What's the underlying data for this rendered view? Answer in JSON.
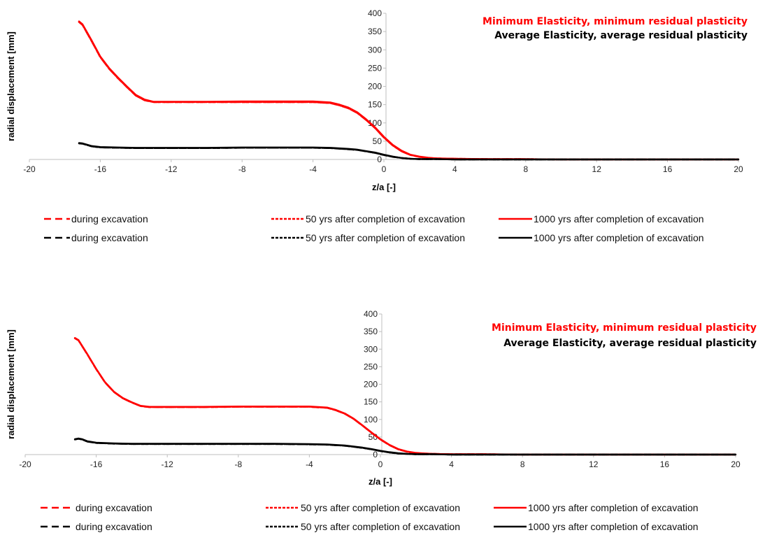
{
  "chart_data": [
    {
      "type": "line",
      "xlabel": "z/a [-]",
      "ylabel": "radial displacement [mm]",
      "xlim": [
        -20,
        20
      ],
      "ylim": [
        0,
        400
      ],
      "xticks": [
        -20,
        -16,
        -12,
        -8,
        -4,
        0,
        4,
        8,
        12,
        16,
        20
      ],
      "yticks": [
        0,
        50,
        100,
        150,
        200,
        250,
        300,
        350,
        400
      ],
      "grid": false,
      "annotations": [
        {
          "text": "Minimum Elasticity, minimum residual plasticity",
          "color": "#ff0000"
        },
        {
          "text": "Average Elasticity, average residual plasticity",
          "color": "#000000"
        }
      ],
      "legend_position": "bottom",
      "series": [
        {
          "name": "during excavation",
          "color": "#ff0000",
          "dash": "dashed",
          "x": [
            -17.2,
            -17,
            -16.5,
            -16,
            -15.5,
            -15,
            -14.5,
            -14,
            -13.5,
            -13,
            -12,
            -10,
            -8,
            -6,
            -4,
            -3,
            -2.5,
            -2,
            -1.5,
            -1,
            -0.5,
            0,
            0.5,
            1,
            1.5,
            2,
            2.5,
            3,
            4,
            6,
            8,
            10,
            12,
            14,
            16,
            18,
            20
          ],
          "y": [
            376,
            368,
            325,
            280,
            248,
            222,
            198,
            175,
            162,
            157,
            157,
            157,
            157,
            157,
            157,
            154,
            148,
            140,
            127,
            108,
            86,
            60,
            38,
            22,
            12,
            7,
            4,
            3,
            2,
            1,
            1,
            0,
            0,
            0,
            0,
            0,
            0
          ]
        },
        {
          "name": "50 yrs after completion of excavation",
          "color": "#ff0000",
          "dash": "short-dashed",
          "x": [
            -17.2,
            -17,
            -16.5,
            -16,
            -15.5,
            -15,
            -14.5,
            -14,
            -13.5,
            -13,
            -12,
            -10,
            -8,
            -6,
            -4,
            -3,
            -2.5,
            -2,
            -1.5,
            -1,
            -0.5,
            0,
            0.5,
            1,
            1.5,
            2,
            2.5,
            3,
            4,
            6,
            8,
            10,
            12,
            14,
            16,
            18,
            20
          ],
          "y": [
            376,
            368,
            325,
            280,
            248,
            222,
            198,
            175,
            162,
            157,
            157,
            157,
            157,
            157,
            157,
            154,
            148,
            140,
            127,
            108,
            86,
            60,
            38,
            22,
            12,
            7,
            4,
            3,
            2,
            1,
            1,
            0,
            0,
            0,
            0,
            0,
            0
          ]
        },
        {
          "name": "1000 yrs after completion of excavation",
          "color": "#ff0000",
          "dash": "solid",
          "x": [
            -17.2,
            -17,
            -16.5,
            -16,
            -15.5,
            -15,
            -14.5,
            -14,
            -13.5,
            -13,
            -12,
            -10,
            -8,
            -6,
            -4,
            -3,
            -2.5,
            -2,
            -1.5,
            -1,
            -0.5,
            0,
            0.5,
            1,
            1.5,
            2,
            2.5,
            3,
            4,
            6,
            8,
            10,
            12,
            14,
            16,
            18,
            20
          ],
          "y": [
            378,
            370,
            327,
            282,
            250,
            224,
            200,
            177,
            164,
            158,
            158,
            158,
            159,
            159,
            159,
            156,
            150,
            142,
            129,
            110,
            88,
            62,
            40,
            24,
            13,
            8,
            5,
            3,
            2,
            1,
            1,
            0,
            0,
            0,
            0,
            0,
            0
          ]
        },
        {
          "name": "during excavation",
          "color": "#000000",
          "dash": "dashed",
          "x": [
            -17.2,
            -17,
            -16.5,
            -16,
            -15,
            -14,
            -12,
            -10,
            -8,
            -6,
            -4,
            -3,
            -2,
            -1.5,
            -1,
            -0.5,
            0,
            0.5,
            1,
            1.5,
            2,
            3,
            4,
            6,
            8,
            12,
            16,
            20
          ],
          "y": [
            44,
            43,
            36,
            33,
            32,
            31,
            31,
            31,
            32,
            32,
            32,
            31,
            28,
            26,
            22,
            18,
            12,
            7,
            4,
            2,
            1,
            1,
            0,
            0,
            0,
            0,
            0,
            0
          ]
        },
        {
          "name": "50 yrs after completion of excavation",
          "color": "#000000",
          "dash": "short-dashed",
          "x": [
            -17.2,
            -17,
            -16.5,
            -16,
            -15,
            -14,
            -12,
            -10,
            -8,
            -6,
            -4,
            -3,
            -2,
            -1.5,
            -1,
            -0.5,
            0,
            0.5,
            1,
            1.5,
            2,
            3,
            4,
            6,
            8,
            12,
            16,
            20
          ],
          "y": [
            44,
            43,
            36,
            33,
            32,
            31,
            31,
            31,
            32,
            32,
            32,
            31,
            28,
            26,
            22,
            18,
            12,
            7,
            4,
            2,
            1,
            1,
            0,
            0,
            0,
            0,
            0,
            0
          ]
        },
        {
          "name": "1000 yrs after completion of excavation",
          "color": "#000000",
          "dash": "solid",
          "x": [
            -17.2,
            -17,
            -16.5,
            -16,
            -15,
            -14,
            -12,
            -10,
            -8,
            -6,
            -4,
            -3,
            -2,
            -1.5,
            -1,
            -0.5,
            0,
            0.5,
            1,
            1.5,
            2,
            3,
            4,
            6,
            8,
            12,
            16,
            20
          ],
          "y": [
            45,
            44,
            37,
            34,
            33,
            32,
            32,
            32,
            33,
            33,
            33,
            32,
            29,
            27,
            23,
            19,
            13,
            8,
            4,
            2,
            1,
            1,
            0,
            0,
            0,
            0,
            0,
            0
          ]
        }
      ]
    },
    {
      "type": "line",
      "xlabel": "z/a [-]",
      "ylabel": "radial displacement [mm]",
      "xlim": [
        -20,
        20
      ],
      "ylim": [
        0,
        400
      ],
      "xticks": [
        -20,
        -16,
        -12,
        -8,
        -4,
        0,
        4,
        8,
        12,
        16,
        20
      ],
      "yticks": [
        0,
        50,
        100,
        150,
        200,
        250,
        300,
        350,
        400
      ],
      "grid": false,
      "annotations": [
        {
          "text": "Minimum Elasticity, minimum residual plasticity",
          "color": "#ff0000"
        },
        {
          "text": "Average Elasticity, average residual plasticity",
          "color": "#000000"
        }
      ],
      "legend_position": "bottom",
      "series": [
        {
          "name": "during excavation",
          "color": "#ff0000",
          "dash": "dashed",
          "x": [
            -17.2,
            -17,
            -16.5,
            -16,
            -15.5,
            -15,
            -14.5,
            -14,
            -13.5,
            -13,
            -12,
            -10,
            -8,
            -6,
            -4,
            -3,
            -2.5,
            -2,
            -1.5,
            -1,
            -0.5,
            0,
            0.5,
            1,
            1.5,
            2,
            2.5,
            3,
            4,
            6,
            8,
            10,
            12,
            14,
            16,
            18,
            20
          ],
          "y": [
            331,
            325,
            285,
            243,
            205,
            178,
            160,
            148,
            138,
            135,
            135,
            135,
            136,
            136,
            136,
            133,
            126,
            116,
            101,
            82,
            62,
            43,
            27,
            15,
            8,
            4,
            3,
            2,
            1,
            1,
            0,
            0,
            0,
            0,
            0,
            0,
            0
          ]
        },
        {
          "name": "50 yrs after completion of excavation",
          "color": "#ff0000",
          "dash": "short-dashed",
          "x": [
            -17.2,
            -17,
            -16.5,
            -16,
            -15.5,
            -15,
            -14.5,
            -14,
            -13.5,
            -13,
            -12,
            -10,
            -8,
            -6,
            -4,
            -3,
            -2.5,
            -2,
            -1.5,
            -1,
            -0.5,
            0,
            0.5,
            1,
            1.5,
            2,
            2.5,
            3,
            4,
            6,
            8,
            10,
            12,
            14,
            16,
            18,
            20
          ],
          "y": [
            331,
            325,
            285,
            243,
            205,
            178,
            160,
            148,
            138,
            135,
            135,
            135,
            136,
            136,
            136,
            133,
            126,
            116,
            101,
            82,
            62,
            43,
            27,
            15,
            8,
            4,
            3,
            2,
            1,
            1,
            0,
            0,
            0,
            0,
            0,
            0,
            0
          ]
        },
        {
          "name": "1000 yrs after completion of excavation",
          "color": "#ff0000",
          "dash": "solid",
          "x": [
            -17.2,
            -17,
            -16.5,
            -16,
            -15.5,
            -15,
            -14.5,
            -14,
            -13.5,
            -13,
            -12,
            -10,
            -8,
            -6,
            -4,
            -3,
            -2.5,
            -2,
            -1.5,
            -1,
            -0.5,
            0,
            0.5,
            1,
            1.5,
            2,
            2.5,
            3,
            4,
            6,
            8,
            10,
            12,
            14,
            16,
            18,
            20
          ],
          "y": [
            332,
            326,
            286,
            244,
            206,
            179,
            161,
            149,
            139,
            136,
            136,
            136,
            137,
            137,
            137,
            134,
            127,
            117,
            102,
            83,
            63,
            44,
            28,
            16,
            9,
            5,
            3,
            2,
            1,
            1,
            0,
            0,
            0,
            0,
            0,
            0,
            0
          ]
        },
        {
          "name": "during excavation",
          "color": "#000000",
          "dash": "dashed",
          "x": [
            -17.2,
            -17,
            -16.8,
            -16.5,
            -16,
            -15,
            -14,
            -12,
            -10,
            -8,
            -6,
            -4,
            -3,
            -2,
            -1.5,
            -1,
            -0.5,
            0,
            0.5,
            1,
            1.5,
            2,
            3,
            4,
            6,
            8,
            12,
            16,
            20
          ],
          "y": [
            43,
            45,
            43,
            37,
            33,
            31,
            30,
            30,
            30,
            30,
            30,
            29,
            28,
            25,
            22,
            19,
            15,
            10,
            6,
            3,
            2,
            1,
            1,
            0,
            0,
            0,
            0,
            0,
            0
          ]
        },
        {
          "name": "50 yrs after completion of excavation",
          "color": "#000000",
          "dash": "short-dashed",
          "x": [
            -17.2,
            -17,
            -16.8,
            -16.5,
            -16,
            -15,
            -14,
            -12,
            -10,
            -8,
            -6,
            -4,
            -3,
            -2,
            -1.5,
            -1,
            -0.5,
            0,
            0.5,
            1,
            1.5,
            2,
            3,
            4,
            6,
            8,
            12,
            16,
            20
          ],
          "y": [
            43,
            45,
            43,
            37,
            33,
            31,
            30,
            30,
            30,
            30,
            30,
            29,
            28,
            25,
            22,
            19,
            15,
            10,
            6,
            3,
            2,
            1,
            1,
            0,
            0,
            0,
            0,
            0,
            0
          ]
        },
        {
          "name": "1000 yrs after completion of excavation",
          "color": "#000000",
          "dash": "solid",
          "x": [
            -17.2,
            -17,
            -16.8,
            -16.5,
            -16,
            -15,
            -14,
            -12,
            -10,
            -8,
            -6,
            -4,
            -3,
            -2,
            -1.5,
            -1,
            -0.5,
            0,
            0.5,
            1,
            1.5,
            2,
            3,
            4,
            6,
            8,
            12,
            16,
            20
          ],
          "y": [
            44,
            46,
            44,
            38,
            34,
            32,
            31,
            31,
            31,
            31,
            31,
            30,
            29,
            26,
            23,
            20,
            16,
            11,
            7,
            4,
            2,
            1,
            1,
            0,
            0,
            0,
            0,
            0,
            0
          ]
        }
      ]
    }
  ]
}
